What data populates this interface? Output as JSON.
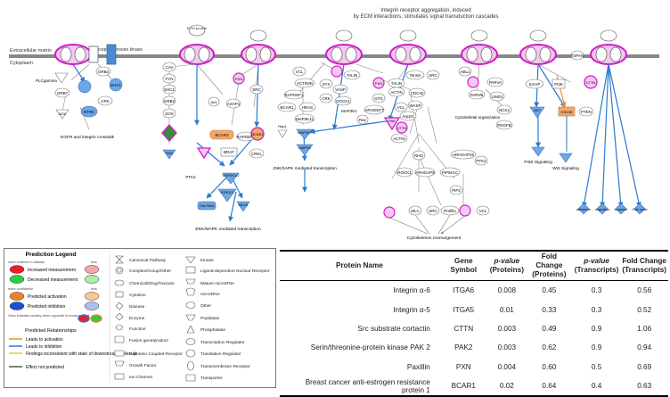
{
  "diagram": {
    "annotation": [
      "Integrin receptor aggregation, induced",
      "by ECM interactions, stimulates signal transduction cascades"
    ],
    "membrane_labels": {
      "top": "Extracellular matrix",
      "bottom": "Cytoplasm"
    },
    "ecm_label": "ECM protein",
    "receptor_kinase": "Receptor tyrosine kinase",
    "nodes": {
      "grb2": "GRB2",
      "plc": "PLCgamma",
      "grb7": "GRB7",
      "shc1": "SHC1",
      "nck": "NCK",
      "ntrk": "NTRK",
      "crk": "CRK",
      "cav": "CAV",
      "fyn": "FYN",
      "shc1b": "SHC1",
      "grb2b": "GRB2",
      "sos": "SOS",
      "ras": "RAS",
      "pxn1": "PXN",
      "src1": "SRC",
      "asap1": "ASAP1",
      "arf1": "Arf1",
      "bcar3": "BCAR3",
      "rapgef1": "RAPGEF1",
      "bcar1": "BCAR1",
      "braf": "BRAF",
      "crkl": "CRKL",
      "raf": "Raf",
      "ptk2": "PTK2",
      "mapk2k": "MAP2K1/2",
      "erk12": "ERK1/2",
      "calpain": "CALPAIN",
      "mlck": "MLCK",
      "vcl": "VCL",
      "talin": "TALIN",
      "actn": "ACTININ",
      "zyx": "ZYX",
      "vasp": "VASP",
      "ptk2b": "PTK2",
      "rapgef1b": "RAPGEF1",
      "bcar1b": "BCAR1",
      "hras": "HRAS",
      "rap1": "Rap1",
      "mapk11": "MAP3K11",
      "mapk7": "MAP2K7",
      "mapk8": "MAPK8",
      "actin": "ACTIN",
      "crkb": "CRK",
      "dock1": "DOCK1",
      "pxn2": "PXN",
      "git1": "GIT1",
      "arhgef7": "ARHGEF7",
      "cdc42": "CDC42",
      "pak": "PAK",
      "rac": "Rac",
      "map3k1": "MAP3K1",
      "talin2": "TALIN",
      "actn2": "ACTIN",
      "vcl2": "VCL",
      "tnsh": "Tensin",
      "src2": "SRC",
      "wasp": "WASP",
      "cortactin": "CTTN",
      "arp": "Arp2/3",
      "rho": "RHO",
      "arhgap26": "ARHGAP26",
      "rock": "ROCK1",
      "arhgap5": "ARHGAP5",
      "pip5k": "PIP5K1C",
      "mlc": "MLC",
      "pip2": "PIP2",
      "profilin": "Profilin",
      "vcl3": "VCL",
      "src3": "SRC",
      "abl1": "ABL1",
      "parva": "PARVA",
      "parvb": "PARVB",
      "lims": "LIMS1",
      "nck2": "NCK2",
      "pdgfb": "PDGFB",
      "cyto": "Cytoskeletal organization",
      "ptk2c": "PTK2",
      "ilk": "ILKAP",
      "akt": "AKT",
      "gsk3": "GSK3B",
      "pi3k": "PI3K",
      "pten": "PTEN",
      "tspan": "TSPAN",
      "cav2": "CAV",
      "cttn": "CTTN"
    },
    "process_labels": {
      "egfr": "EGFR and integrin crosstalk",
      "erk_prolif": "ERK/MAPK mediated transcription",
      "jnk": "JNK/SAPK mediated transcription",
      "cytoskel": "Cytoskeleton rearrangement",
      "pi3k_sig": "PI3K Signaling",
      "wnt_sig": "Wnt Signaling",
      "adhesion": "adhesion",
      "migration": "migration",
      "invasion": "invasion",
      "cell_cycle": "Cell cycle"
    }
  },
  "legend": {
    "title": "Prediction Legend",
    "more_extreme": "more extreme in dataset",
    "less": "less",
    "increased": "Increased measurement",
    "decreased": "Decreased measurement",
    "more_confidence": "more confidence",
    "less2": "less",
    "pred_activation": "Predicted activation",
    "pred_inhibition": "Predicted inhibition",
    "glow_note": "Glow indicates activity when opposite of measurement",
    "relationships_title": "Predicted Relationships",
    "leads_activation": "Leads to activation",
    "leads_inhibition": "Leads to inhibition",
    "findings_inconsistent": "Findings inconsistent with state of downstream molecule",
    "effect_not_predicted": "Effect not predicted",
    "shapes_col1": [
      "Canonical Pathway",
      "Complex/Group/Other",
      "Chemical/Drug/Toxicant",
      "Cytokine",
      "Disease",
      "Enzyme",
      "Function",
      "Fusion gene/product",
      "G-protein Coupled Receptor",
      "Growth Factor",
      "Ion Channel"
    ],
    "shapes_col2": [
      "Kinase",
      "Ligand-dependent Nuclear Receptor",
      "Mature microRNA",
      "microRNA",
      "Other",
      "Peptidase",
      "Phosphatase",
      "Transcription Regulator",
      "Translation Regulator",
      "Transmembrane Receptor",
      "Transporter"
    ],
    "colors": {
      "increased_hi": "#e8202a",
      "increased_lo": "#f4a7a7",
      "decreased_hi": "#2ecc40",
      "decreased_lo": "#a8eda8",
      "activation_hi": "#f07f2a",
      "activation_lo": "#f7c79b",
      "inhibition_hi": "#1f4fcf",
      "inhibition_lo": "#a8c0ee",
      "arrow_activation": "#f08a2a",
      "arrow_inhibition": "#2a7ad0",
      "arrow_inconsistent": "#f2c52a",
      "arrow_not_predicted": "#555555"
    }
  },
  "table": {
    "headers": [
      "Protein Name",
      "Gene Symbol",
      "p-value (Proteins)",
      "Fold Change (Proteins)",
      "p-value (Transcripts)",
      "Fold Change (Transcripts)"
    ],
    "header_lines": [
      [
        "Protein Name"
      ],
      [
        "Gene Symbol"
      ],
      [
        "p-value",
        "(Proteins)"
      ],
      [
        "Fold Change",
        "(Proteins)"
      ],
      [
        "p-value",
        "(Transcripts)"
      ],
      [
        "Fold Change",
        "(Transcripts)"
      ]
    ],
    "rows": [
      [
        "Integrin α-6",
        "ITGA6",
        "0.008",
        "0.45",
        "0.3",
        "0.56"
      ],
      [
        "Integrin α-5",
        "ITGA5",
        "0.01",
        "0.33",
        "0.3",
        "0.52"
      ],
      [
        "Src substrate cortactin",
        "CTTN",
        "0.003",
        "0.49",
        "0.9",
        "1.06"
      ],
      [
        "Serin/threonine-protein kinase PAK 2",
        "PAK2",
        "0.003",
        "0.62",
        "0.9",
        "0.94"
      ],
      [
        "Paxillin",
        "PXN",
        "0.004",
        "0.60",
        "0.5",
        "0.69"
      ],
      [
        "Breast cancer anti-estrogen resistance protein 1",
        "BCAR1",
        "0.02",
        "0.64",
        "0.4",
        "0.63"
      ]
    ]
  }
}
